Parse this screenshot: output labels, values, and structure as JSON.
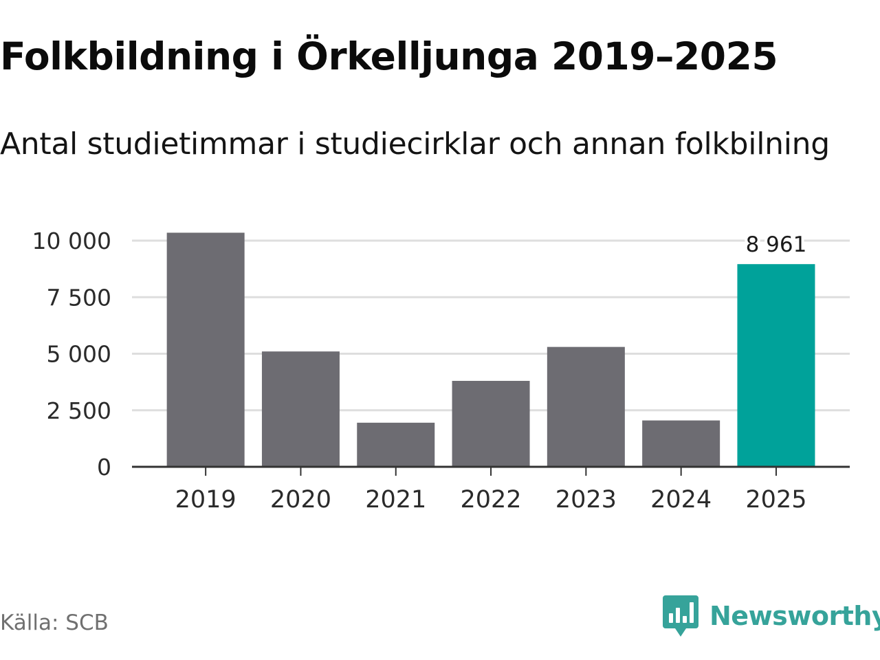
{
  "title": "Folkbildning i Örkelljunga 2019–2025",
  "subtitle": "Antal studietimmar i studiecirklar och annan folkbilning",
  "source": "Källa: SCB",
  "brand": {
    "name": "Newsworthy",
    "logo_icon": "newsworthy-bar-chart-speech-bubble",
    "color": "#36a39a"
  },
  "colors": {
    "bar_default": "#6d6c72",
    "bar_highlight": "#00a29a",
    "grid": "#dedede",
    "axis": "#333333"
  },
  "chart_data": {
    "type": "bar",
    "categories": [
      "2019",
      "2020",
      "2021",
      "2022",
      "2023",
      "2024",
      "2025"
    ],
    "values": [
      10350,
      5100,
      1950,
      3800,
      5300,
      2050,
      8961
    ],
    "highlight_index": 6,
    "data_labels": [
      {
        "category": "2025",
        "text": "8 961"
      }
    ],
    "ylim": [
      0,
      10000
    ],
    "yticks": [
      0,
      2500,
      5000,
      7500,
      10000
    ],
    "ytick_labels": [
      "0",
      "2 500",
      "5 000",
      "7 500",
      "10 000"
    ],
    "grid": true,
    "xlabel": "",
    "ylabel": ""
  }
}
